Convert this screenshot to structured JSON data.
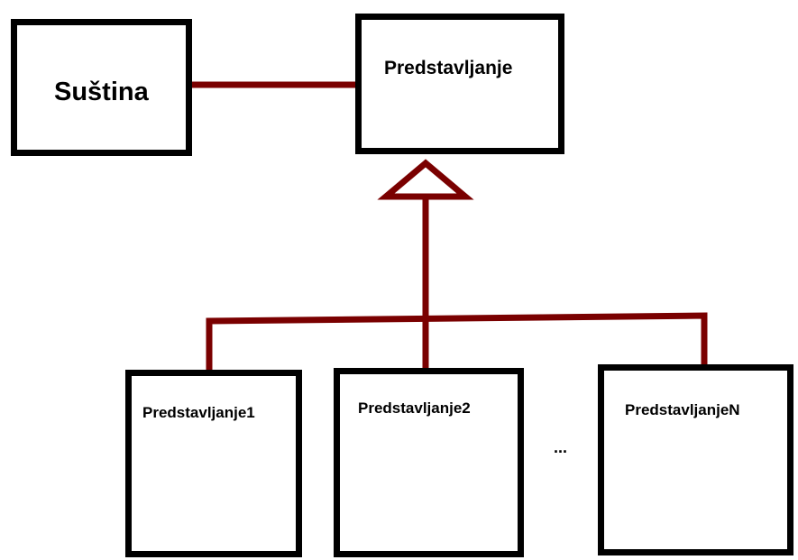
{
  "diagram": {
    "colors": {
      "connector": "#7a0000",
      "box_border": "#000000",
      "background": "#ffffff"
    },
    "nodes": {
      "sustina": {
        "label": "Suština"
      },
      "predstavljanje": {
        "label": "Predstavljanje"
      },
      "predstavljanje1": {
        "label": "Predstavljanje1"
      },
      "predstavljanje2": {
        "label": "Predstavljanje2"
      },
      "predstavljanjeN": {
        "label": "PredstavljanjeN"
      }
    },
    "ellipsis": "...",
    "edges": [
      {
        "from": "sustina",
        "to": "predstavljanje",
        "type": "association"
      },
      {
        "from": "predstavljanje1",
        "to": "predstavljanje",
        "type": "inheritance"
      },
      {
        "from": "predstavljanje2",
        "to": "predstavljanje",
        "type": "inheritance"
      },
      {
        "from": "predstavljanjeN",
        "to": "predstavljanje",
        "type": "inheritance"
      }
    ]
  }
}
